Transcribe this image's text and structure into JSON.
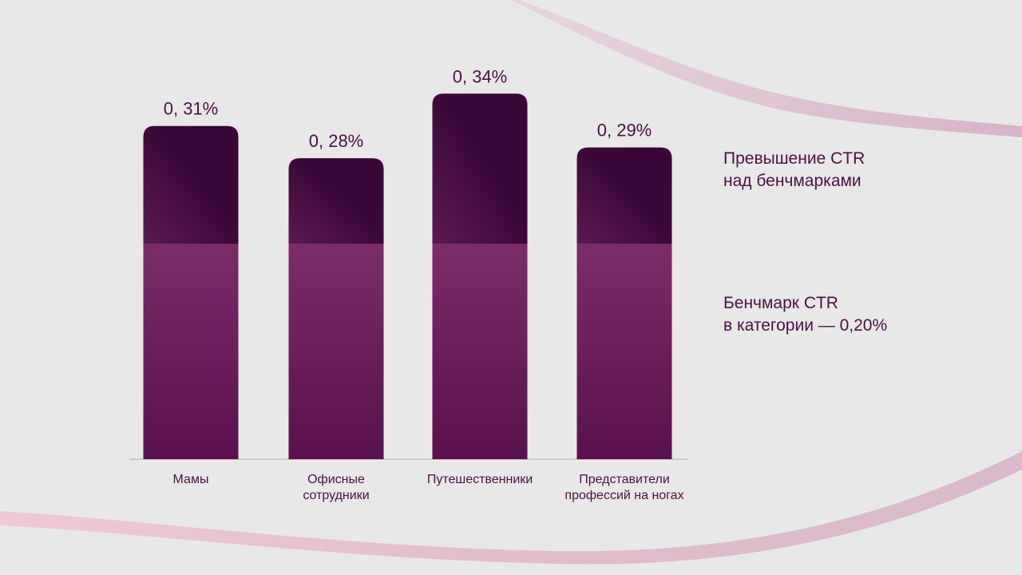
{
  "chart_data": {
    "type": "bar",
    "stacked": true,
    "categories": [
      [
        "Мамы"
      ],
      [
        "Офисные",
        "сотрудники"
      ],
      [
        "Путешественники"
      ],
      [
        "Представители",
        "профессий на ногах"
      ]
    ],
    "totals": [
      0.31,
      0.28,
      0.34,
      0.29
    ],
    "total_labels": [
      "0, 31%",
      "0, 28%",
      "0, 34%",
      "0, 29%"
    ],
    "benchmark": 0.2,
    "series": [
      {
        "name": "Бенчмарк CTR в категории — 0,20%",
        "values": [
          0.2,
          0.2,
          0.2,
          0.2
        ],
        "color": "#6e2462"
      },
      {
        "name": "Превышение CTR над бенчмарками",
        "values": [
          0.11,
          0.08,
          0.14,
          0.09
        ],
        "color": "#3d0a3c"
      }
    ],
    "ylim": [
      0,
      0.36
    ],
    "grid": false
  },
  "legend": {
    "excess": [
      "Превышение CTR",
      "над бенчмарками"
    ],
    "benchmark": [
      "Бенчмарк CTR",
      "в категории — 0,20%"
    ]
  },
  "colors": {
    "background": "#e9e8e9",
    "benchmark_part": "#6e2462",
    "excess_part": "#3d0a3c",
    "text": "#4a1140",
    "wave": "#d9adc4"
  }
}
